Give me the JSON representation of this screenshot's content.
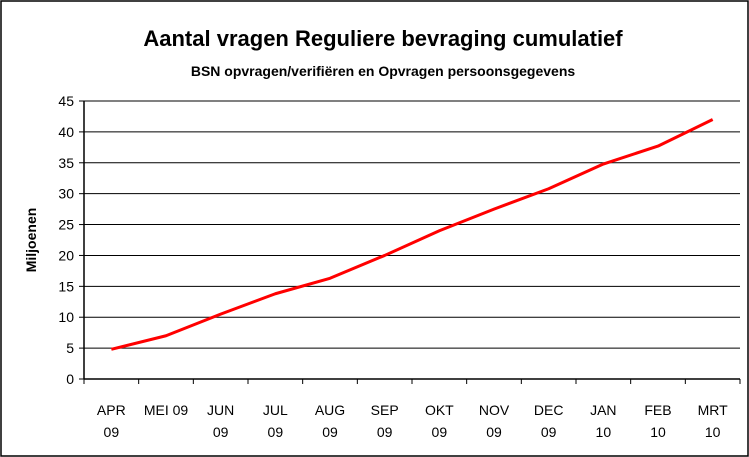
{
  "chart_data": {
    "type": "line",
    "title": "Aantal vragen Reguliere bevraging cumulatief",
    "subtitle": "BSN opvragen/verifiëren en Opvragen persoonsgegevens",
    "y_label": "Miljoenen",
    "categories": [
      "APR\n09",
      "MEI 09",
      "JUN\n09",
      "JUL\n09",
      "AUG\n09",
      "SEP\n09",
      "OKT\n09",
      "NOV\n09",
      "DEC\n09",
      "JAN\n10",
      "FEB\n10",
      "MRT\n10"
    ],
    "series": [
      {
        "name": "Aantal vragen",
        "color": "#ff0000",
        "values": [
          4.8,
          7,
          10.5,
          13.8,
          16.3,
          20,
          24,
          27.5,
          30.8,
          34.8,
          37.7,
          42
        ]
      }
    ],
    "ylim": [
      0,
      45
    ],
    "yticks": [
      0,
      5,
      10,
      15,
      20,
      25,
      30,
      35,
      40,
      45
    ],
    "grid": true
  }
}
